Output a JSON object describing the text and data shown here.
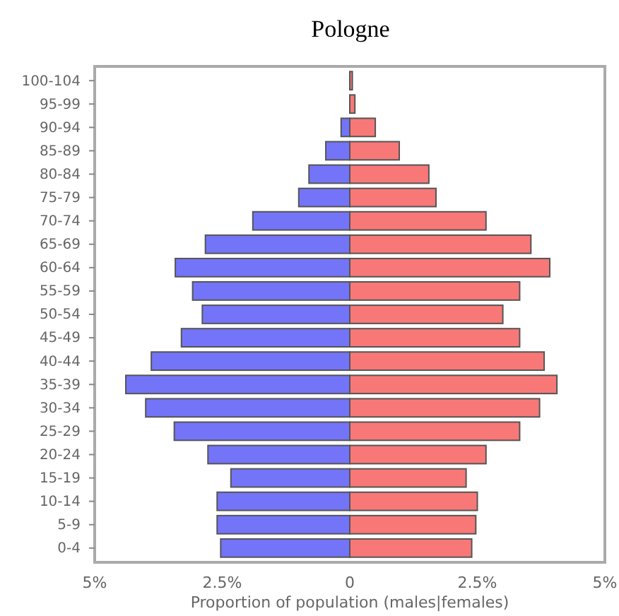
{
  "chart_data": {
    "type": "bar",
    "orientation": "horizontal",
    "stacked": true,
    "title": "Pologne",
    "xlabel": "Proportion of population (males|females)",
    "categories": [
      "100-104",
      "95-99",
      "90-94",
      "85-89",
      "80-84",
      "75-79",
      "70-74",
      "65-69",
      "60-64",
      "55-59",
      "50-54",
      "45-49",
      "40-44",
      "35-39",
      "30-34",
      "25-29",
      "20-24",
      "15-19",
      "10-14",
      "5-9",
      "0-4"
    ],
    "series": [
      {
        "color": "#7474f8",
        "values": [
          null,
          null,
          -0.17,
          -0.47,
          -0.8,
          -1.0,
          -1.9,
          -2.83,
          -3.42,
          -3.08,
          -2.89,
          -3.3,
          -3.89,
          -4.39,
          -4.0,
          -3.44,
          -2.78,
          -2.33,
          -2.6,
          -2.6,
          -2.53
        ]
      },
      {
        "color": "#f87878",
        "values": [
          0.05,
          0.1,
          0.5,
          0.97,
          1.55,
          1.69,
          2.67,
          3.55,
          3.92,
          3.33,
          3.0,
          3.33,
          3.81,
          4.06,
          3.72,
          3.33,
          2.67,
          2.28,
          2.5,
          2.47,
          2.39
        ]
      }
    ],
    "xlim": [
      -5,
      5
    ],
    "xticks": [
      {
        "value": -5,
        "label": "5%"
      },
      {
        "value": -2.5,
        "label": "2.5%"
      },
      0,
      {
        "value": 2.5,
        "label": "2.5%"
      },
      {
        "value": 5,
        "label": "5%"
      }
    ],
    "grid": false
  }
}
